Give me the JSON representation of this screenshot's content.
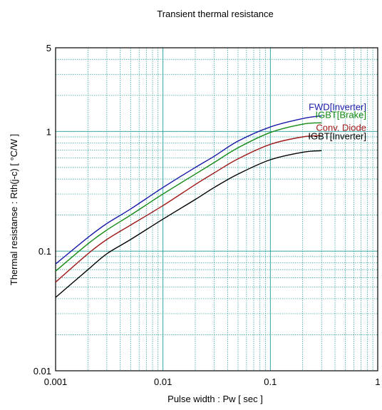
{
  "chart_data": {
    "type": "line",
    "title": "Transient thermal resistance",
    "xlabel": "Pulse width : Pw [ sec ]",
    "ylabel": "Thermal resistanse : Rth(j-c) [ °C/W ]",
    "x_scale": "log",
    "y_scale": "log",
    "xlim": [
      0.001,
      1
    ],
    "ylim": [
      0.01,
      5
    ],
    "grid": true,
    "x_ticks": [
      {
        "value": 0.001,
        "label": "0.001"
      },
      {
        "value": 0.01,
        "label": "0.01"
      },
      {
        "value": 0.1,
        "label": "0.1"
      },
      {
        "value": 1,
        "label": "1"
      }
    ],
    "y_ticks": [
      {
        "value": 0.01,
        "label": "0.01"
      },
      {
        "value": 0.1,
        "label": "0.1"
      },
      {
        "value": 1,
        "label": "1"
      },
      {
        "value": 5,
        "label": "5"
      }
    ],
    "series": [
      {
        "name": "FWD[Inverter]",
        "color": "#1a1aa8",
        "x": [
          0.001,
          0.002,
          0.003,
          0.005,
          0.01,
          0.02,
          0.03,
          0.05,
          0.1,
          0.2,
          0.3
        ],
        "y": [
          0.078,
          0.13,
          0.17,
          0.225,
          0.34,
          0.5,
          0.62,
          0.83,
          1.09,
          1.28,
          1.35
        ]
      },
      {
        "name": "IGBT[Brake]",
        "color": "#158a15",
        "x": [
          0.001,
          0.002,
          0.003,
          0.005,
          0.01,
          0.02,
          0.03,
          0.05,
          0.1,
          0.2,
          0.3
        ],
        "y": [
          0.068,
          0.115,
          0.15,
          0.2,
          0.3,
          0.44,
          0.55,
          0.73,
          0.98,
          1.15,
          1.18
        ]
      },
      {
        "name": "Conv. Diode",
        "color": "#a01818",
        "x": [
          0.001,
          0.002,
          0.003,
          0.005,
          0.01,
          0.02,
          0.03,
          0.05,
          0.1,
          0.2,
          0.3
        ],
        "y": [
          0.055,
          0.095,
          0.125,
          0.165,
          0.24,
          0.36,
          0.45,
          0.59,
          0.78,
          0.9,
          0.92
        ]
      },
      {
        "name": "IGBT[Inverter]",
        "color": "#000000",
        "x": [
          0.001,
          0.002,
          0.003,
          0.005,
          0.01,
          0.02,
          0.03,
          0.05,
          0.1,
          0.2,
          0.3
        ],
        "y": [
          0.041,
          0.07,
          0.095,
          0.125,
          0.185,
          0.27,
          0.34,
          0.44,
          0.58,
          0.67,
          0.69
        ]
      }
    ],
    "legend_position": "labels near curve ends, top-right"
  }
}
